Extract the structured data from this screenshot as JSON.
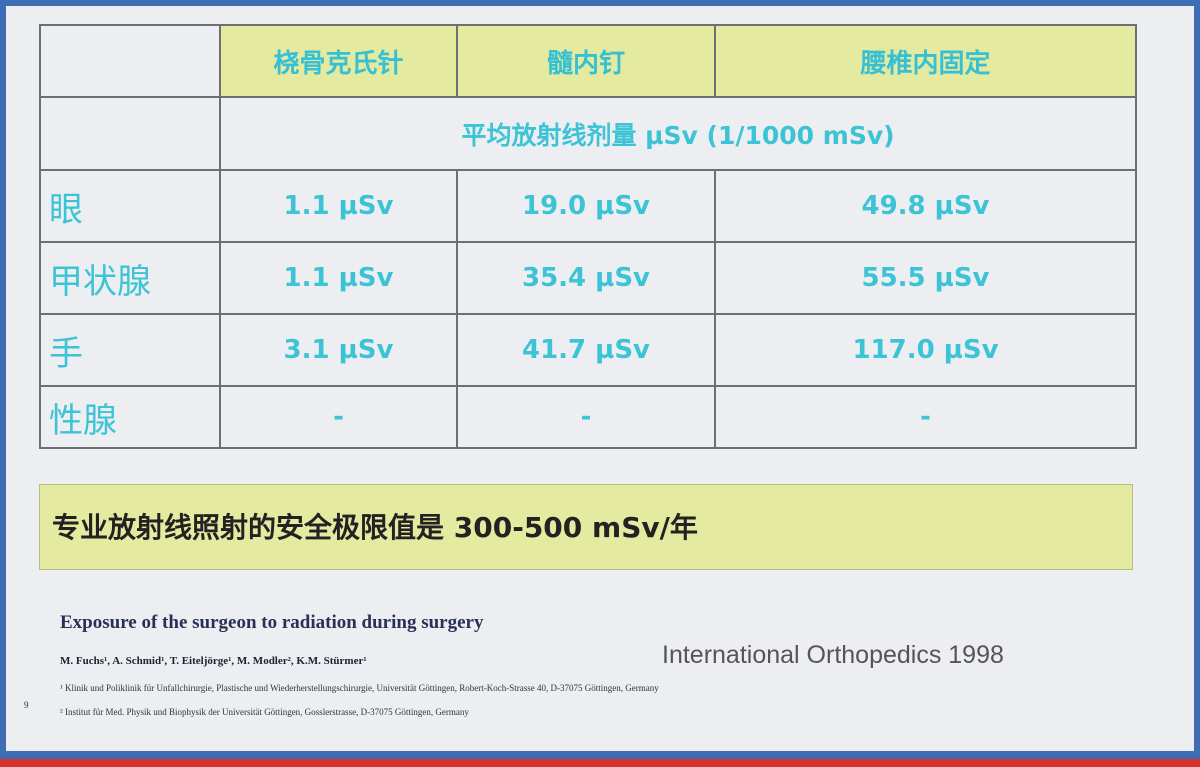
{
  "table": {
    "columns": [
      "桡骨克氏针",
      "髓内钉",
      "腰椎内固定"
    ],
    "unit_row": "平均放射线剂量 µSv (1/1000 mSv)",
    "rows": [
      {
        "label": "眼",
        "cells": [
          "1.1 µSv",
          "19.0 µSv",
          "49.8 µSv"
        ]
      },
      {
        "label": "甲状腺",
        "cells": [
          "1.1 µSv",
          "35.4 µSv",
          "55.5 µSv"
        ]
      },
      {
        "label": "手",
        "cells": [
          "3.1 µSv",
          "41.7 µSv",
          "117.0 µSv"
        ]
      },
      {
        "label": "性腺",
        "cells": [
          "-",
          "-",
          "-"
        ]
      }
    ]
  },
  "note": "专业放射线照射的安全极限值是 300-500 mSv/年",
  "citation": {
    "title": "Exposure of the surgeon to radiation during surgery",
    "authors": "M. Fuchs¹, A. Schmid¹, T. Eiteljörge¹, M. Modler², K.M. Stürmer¹",
    "affiliations": [
      "¹ Klinik und Poliklinik für Unfallchirurgie, Plastische und Wiederherstellungschirurgie, Universität Göttingen, Robert-Koch-Strasse 40, D-37075 Göttingen, Germany",
      "² Institut für Med. Physik und Biophysik der Universität Göttingen, Gosslerstrasse, D-37075 Göttingen, Germany"
    ],
    "journal": "International Orthopedics 1998"
  },
  "page_number": "9"
}
